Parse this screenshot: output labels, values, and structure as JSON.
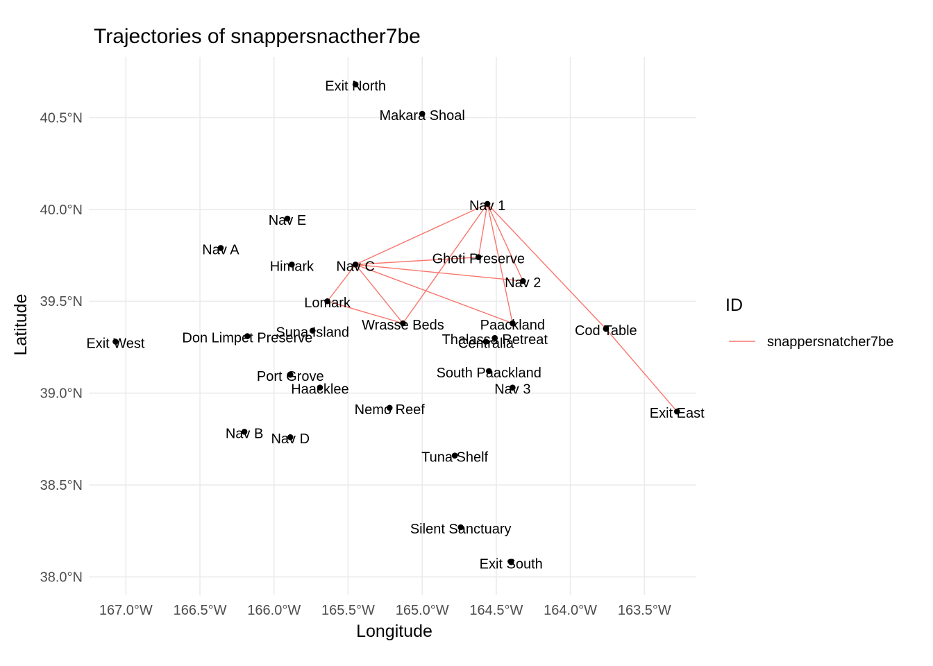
{
  "chart_data": {
    "type": "scatter",
    "title": "Trajectories of snappersnacther7be",
    "xlabel": "Longitude",
    "ylabel": "Latitude",
    "xlim": [
      -167.25,
      -163.15
    ],
    "ylim": [
      37.9,
      40.83
    ],
    "x_ticks": [
      {
        "value": -167.0,
        "label": "167.0°W"
      },
      {
        "value": -166.5,
        "label": "166.5°W"
      },
      {
        "value": -166.0,
        "label": "166.0°W"
      },
      {
        "value": -165.5,
        "label": "165.5°W"
      },
      {
        "value": -165.0,
        "label": "165.0°W"
      },
      {
        "value": -164.5,
        "label": "164.5°W"
      },
      {
        "value": -164.0,
        "label": "164.0°W"
      },
      {
        "value": -163.5,
        "label": "163.5°W"
      }
    ],
    "y_ticks": [
      {
        "value": 38.0,
        "label": "38.0°N"
      },
      {
        "value": 38.5,
        "label": "38.5°N"
      },
      {
        "value": 39.0,
        "label": "39.0°N"
      },
      {
        "value": 39.5,
        "label": "39.5°N"
      },
      {
        "value": 40.0,
        "label": "40.0°N"
      },
      {
        "value": 40.5,
        "label": "40.5°N"
      }
    ],
    "grid": true,
    "legend": {
      "title": "ID",
      "position": "right",
      "entries": [
        {
          "label": "snappersnatcher7be",
          "color": "#F8766D"
        }
      ]
    },
    "points": [
      {
        "name": "Exit North",
        "lon": -165.45,
        "lat": 40.68
      },
      {
        "name": "Makara Shoal",
        "lon": -165.0,
        "lat": 40.52
      },
      {
        "name": "Nav 1",
        "lon": -164.56,
        "lat": 40.03
      },
      {
        "name": "Nav E",
        "lon": -165.91,
        "lat": 39.95
      },
      {
        "name": "Nav A",
        "lon": -166.36,
        "lat": 39.79
      },
      {
        "name": "Ghoti Preserve",
        "lon": -164.62,
        "lat": 39.74
      },
      {
        "name": "Himark",
        "lon": -165.88,
        "lat": 39.7
      },
      {
        "name": "Nav C",
        "lon": -165.45,
        "lat": 39.7
      },
      {
        "name": "Nav 2",
        "lon": -164.32,
        "lat": 39.61
      },
      {
        "name": "Lomark",
        "lon": -165.64,
        "lat": 39.5
      },
      {
        "name": "Wrasse Beds",
        "lon": -165.13,
        "lat": 39.38
      },
      {
        "name": "Paackland",
        "lon": -164.39,
        "lat": 39.38
      },
      {
        "name": "Cod Table",
        "lon": -163.76,
        "lat": 39.35
      },
      {
        "name": "Suna Island",
        "lon": -165.74,
        "lat": 39.34
      },
      {
        "name": "Don Limpet Preserve",
        "lon": -166.18,
        "lat": 39.31
      },
      {
        "name": "Thalassa Retreat",
        "lon": -164.51,
        "lat": 39.3
      },
      {
        "name": "Centralia",
        "lon": -164.57,
        "lat": 39.28
      },
      {
        "name": "Exit West",
        "lon": -167.07,
        "lat": 39.28
      },
      {
        "name": "South Paackland",
        "lon": -164.55,
        "lat": 39.12
      },
      {
        "name": "Port Grove",
        "lon": -165.89,
        "lat": 39.1
      },
      {
        "name": "Haacklee",
        "lon": -165.69,
        "lat": 39.03
      },
      {
        "name": "Nav 3",
        "lon": -164.39,
        "lat": 39.03
      },
      {
        "name": "Nemo Reef",
        "lon": -165.22,
        "lat": 38.92
      },
      {
        "name": "Exit East",
        "lon": -163.28,
        "lat": 38.9
      },
      {
        "name": "Nav B",
        "lon": -166.2,
        "lat": 38.79
      },
      {
        "name": "Nav D",
        "lon": -165.89,
        "lat": 38.76
      },
      {
        "name": "Tuna Shelf",
        "lon": -164.78,
        "lat": 38.66
      },
      {
        "name": "Silent Sanctuary",
        "lon": -164.74,
        "lat": 38.27
      },
      {
        "name": "Exit South",
        "lon": -164.4,
        "lat": 38.08
      }
    ],
    "series": [
      {
        "name": "snappersnatcher7be",
        "color": "#F8766D",
        "path": [
          {
            "lon": -164.56,
            "lat": 40.03
          },
          {
            "lon": -164.62,
            "lat": 39.74
          },
          {
            "lon": -165.45,
            "lat": 39.7
          },
          {
            "lon": -164.32,
            "lat": 39.61
          },
          {
            "lon": -164.56,
            "lat": 40.03
          },
          {
            "lon": -165.45,
            "lat": 39.7
          },
          {
            "lon": -165.13,
            "lat": 39.38
          },
          {
            "lon": -164.56,
            "lat": 40.03
          },
          {
            "lon": -164.39,
            "lat": 39.38
          },
          {
            "lon": -165.45,
            "lat": 39.7
          },
          {
            "lon": -165.64,
            "lat": 39.5
          },
          {
            "lon": -165.13,
            "lat": 39.38
          },
          {
            "lon": -164.56,
            "lat": 40.03
          },
          {
            "lon": -163.76,
            "lat": 39.35
          },
          {
            "lon": -163.28,
            "lat": 38.9
          }
        ]
      }
    ]
  }
}
